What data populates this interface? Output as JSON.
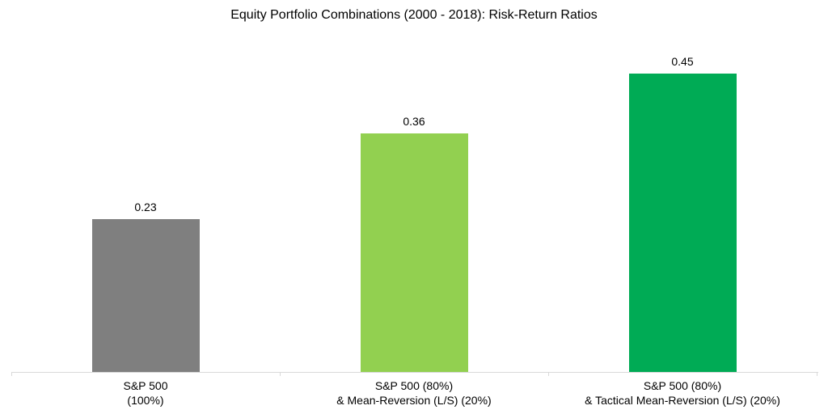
{
  "chart_data": {
    "type": "bar",
    "title": "Equity Portfolio Combinations (2000 - 2018): Risk-Return Ratios",
    "categories": [
      {
        "line1": "S&P 500",
        "line2": "(100%)"
      },
      {
        "line1": "S&P 500 (80%)",
        "line2": "& Mean-Reversion (L/S) (20%)"
      },
      {
        "line1": "S&P 500 (80%)",
        "line2": "& Tactical Mean-Reversion (L/S) (20%)"
      }
    ],
    "values": [
      0.23,
      0.36,
      0.45
    ],
    "value_labels": [
      "0.23",
      "0.36",
      "0.45"
    ],
    "bar_colors": [
      "#7F7F7F",
      "#92D050",
      "#00AB55"
    ],
    "xlabel": "",
    "ylabel": "",
    "ylim": [
      0,
      0.56
    ],
    "grid": false,
    "legend": false,
    "axis_line_color": "#D9D9D9",
    "text_color": "#000000",
    "background_color": "#FFFFFF"
  }
}
